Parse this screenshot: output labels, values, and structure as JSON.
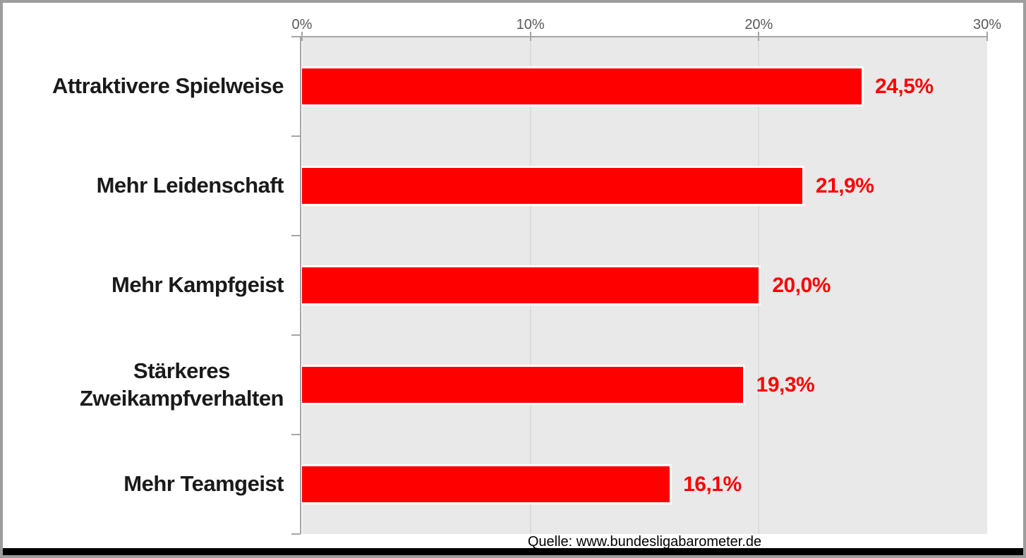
{
  "chart_data": {
    "type": "bar",
    "orientation": "horizontal",
    "title": "",
    "categories": [
      "Attraktivere Spielweise",
      "Mehr Leidenschaft",
      "Mehr Kampfgeist",
      "Stärkeres Zweikampfverhalten",
      "Mehr Teamgeist"
    ],
    "category_display": [
      "Attraktivere Spielweise",
      "Mehr Leidenschaft",
      "Mehr Kampfgeist",
      "Stärkeres\nZweikampfverhalten",
      "Mehr Teamgeist"
    ],
    "values": [
      24.5,
      21.9,
      20.0,
      19.3,
      16.1
    ],
    "data_labels": [
      "24,5%",
      "21,9%",
      "20,0%",
      "19,3%",
      "16,1%"
    ],
    "x_axis": {
      "position": "top",
      "tick_labels": [
        "0%",
        "10%",
        "20%",
        "30%"
      ],
      "tick_values": [
        0,
        10,
        20,
        30
      ],
      "min": 0,
      "max": 30
    },
    "grid": true,
    "legend": false,
    "source": "Quelle: www.bundesligabarometer.de",
    "colors": {
      "bar": "#ff0000",
      "data_label": "#ff0000",
      "plot_background": "#e9e9e9",
      "gridline": "#dcdcdc",
      "axis_line": "#a6a6a6",
      "tick_label": "#595959",
      "category_label": "#1a1a1a",
      "source_label": "#000000",
      "frame_border": "#9d9d9d",
      "bottom_strip": "#000000"
    }
  }
}
